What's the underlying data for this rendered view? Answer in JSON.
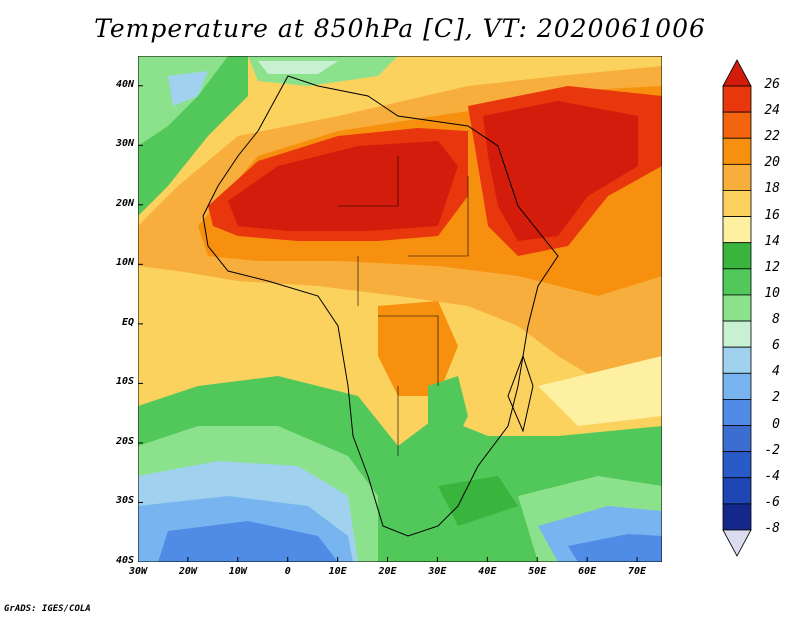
{
  "title": "Temperature at 850hPa [C], VT: 2020061006",
  "credit": "GrADS: IGES/COLA",
  "map": {
    "projection": "lat-lon",
    "lon_range": [
      -30,
      75
    ],
    "lat_range": [
      -40,
      45
    ],
    "lat_ticks": [
      {
        "value": 40,
        "label": "40N"
      },
      {
        "value": 30,
        "label": "30N"
      },
      {
        "value": 20,
        "label": "20N"
      },
      {
        "value": 10,
        "label": "10N"
      },
      {
        "value": 0,
        "label": "EQ"
      },
      {
        "value": -10,
        "label": "10S"
      },
      {
        "value": -20,
        "label": "20S"
      },
      {
        "value": -30,
        "label": "30S"
      },
      {
        "value": -40,
        "label": "40S"
      }
    ],
    "lon_ticks": [
      {
        "value": -30,
        "label": "30W"
      },
      {
        "value": -20,
        "label": "20W"
      },
      {
        "value": -10,
        "label": "10W"
      },
      {
        "value": 0,
        "label": "0"
      },
      {
        "value": 10,
        "label": "10E"
      },
      {
        "value": 20,
        "label": "20E"
      },
      {
        "value": 30,
        "label": "30E"
      },
      {
        "value": 40,
        "label": "40E"
      },
      {
        "value": 50,
        "label": "50E"
      },
      {
        "value": 60,
        "label": "60E"
      },
      {
        "value": 70,
        "label": "70E"
      }
    ]
  },
  "colorbar": {
    "labels": [
      "26",
      "24",
      "22",
      "20",
      "18",
      "16",
      "14",
      "12",
      "10",
      "8",
      "6",
      "4",
      "2",
      "0",
      "-2",
      "-4",
      "-6",
      "-8"
    ],
    "colors": [
      "#d41c0c",
      "#e8360d",
      "#f2640d",
      "#f7900f",
      "#f7ae3c",
      "#fcd25f",
      "#fdf0a0",
      "#39b43c",
      "#52c85a",
      "#8ce28c",
      "#c8f0d2",
      "#a0d2f0",
      "#78b4f0",
      "#508ce6",
      "#3c6ed2",
      "#285ac8",
      "#1e46b4",
      "#14288c",
      "#0a1464"
    ]
  }
}
